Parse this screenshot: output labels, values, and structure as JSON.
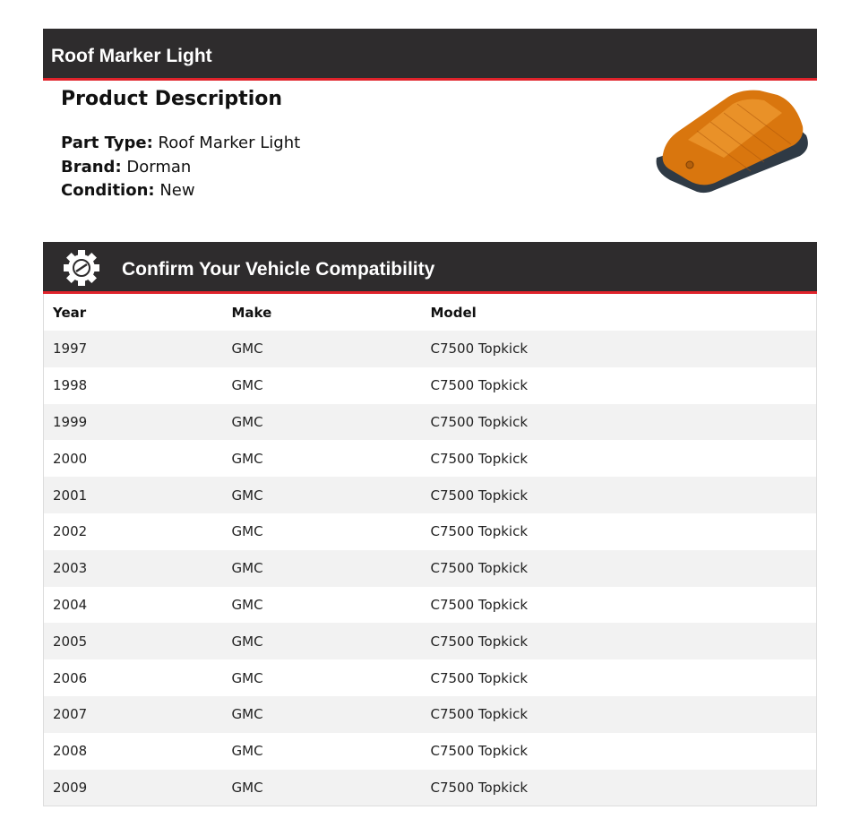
{
  "header": {
    "title": "Roof Marker Light"
  },
  "description": {
    "heading": "Product Description",
    "fields": [
      {
        "label": "Part Type:",
        "value": "Roof Marker Light"
      },
      {
        "label": "Brand:",
        "value": "Dorman"
      },
      {
        "label": "Condition:",
        "value": "New"
      }
    ]
  },
  "compatibility": {
    "title": "Confirm Your Vehicle Compatibility",
    "icon": "gear-car-icon",
    "columns": [
      "Year",
      "Make",
      "Model"
    ],
    "rows": [
      [
        "1997",
        "GMC",
        "C7500 Topkick"
      ],
      [
        "1998",
        "GMC",
        "C7500 Topkick"
      ],
      [
        "1999",
        "GMC",
        "C7500 Topkick"
      ],
      [
        "2000",
        "GMC",
        "C7500 Topkick"
      ],
      [
        "2001",
        "GMC",
        "C7500 Topkick"
      ],
      [
        "2002",
        "GMC",
        "C7500 Topkick"
      ],
      [
        "2003",
        "GMC",
        "C7500 Topkick"
      ],
      [
        "2004",
        "GMC",
        "C7500 Topkick"
      ],
      [
        "2005",
        "GMC",
        "C7500 Topkick"
      ],
      [
        "2006",
        "GMC",
        "C7500 Topkick"
      ],
      [
        "2007",
        "GMC",
        "C7500 Topkick"
      ],
      [
        "2008",
        "GMC",
        "C7500 Topkick"
      ],
      [
        "2009",
        "GMC",
        "C7500 Topkick"
      ]
    ]
  },
  "colors": {
    "header_bg": "#2e2c2d",
    "accent": "#e0232b",
    "row_alt": "#f2f2f2"
  }
}
